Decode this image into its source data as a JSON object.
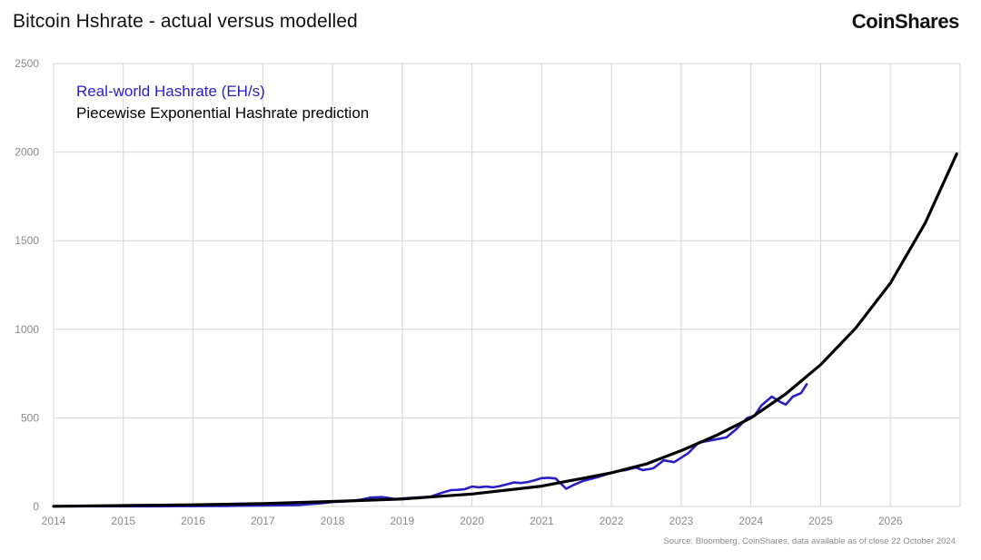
{
  "header": {
    "title": "Bitcoin Hshrate - actual versus modelled",
    "brand": "CoinShares"
  },
  "footer": {
    "source": "Source: Bloomberg, CoinShares, data available as of close 22 October 2024"
  },
  "colors": {
    "actual": "#2a1fc2",
    "model": "#000000",
    "grid": "#d4d4d4",
    "axis_text": "#8a8a8a"
  },
  "chart_data": {
    "type": "line",
    "title": "Bitcoin Hshrate - actual versus modelled",
    "xlabel": "",
    "ylabel": "",
    "xlim": [
      2014.0,
      2027.0
    ],
    "ylim": [
      0,
      2500
    ],
    "grid": true,
    "legend_position": "top-left",
    "x_ticks": [
      "2014",
      "2015",
      "2016",
      "2017",
      "2018",
      "2019",
      "2020",
      "2021",
      "2022",
      "2023",
      "2024",
      "2025",
      "2026"
    ],
    "y_ticks": [
      "0",
      "500",
      "1000",
      "1500",
      "2000",
      "2500"
    ],
    "series": [
      {
        "name": "Real-world Hashrate (EH/s)",
        "color": "#2a1fc2",
        "x": [
          2014.0,
          2014.5,
          2015.0,
          2015.5,
          2016.0,
          2016.5,
          2017.0,
          2017.5,
          2017.85,
          2018.0,
          2018.2,
          2018.4,
          2018.55,
          2018.7,
          2018.8,
          2018.9,
          2019.0,
          2019.2,
          2019.4,
          2019.55,
          2019.7,
          2019.8,
          2019.9,
          2020.0,
          2020.1,
          2020.2,
          2020.3,
          2020.4,
          2020.5,
          2020.6,
          2020.7,
          2020.8,
          2020.9,
          2021.0,
          2021.1,
          2021.2,
          2021.35,
          2021.45,
          2021.6,
          2021.8,
          2022.0,
          2022.1,
          2022.2,
          2022.35,
          2022.45,
          2022.6,
          2022.75,
          2022.9,
          2023.0,
          2023.1,
          2023.25,
          2023.45,
          2023.65,
          2023.8,
          2023.95,
          2024.05,
          2024.15,
          2024.3,
          2024.42,
          2024.5,
          2024.6,
          2024.72,
          2024.8
        ],
        "values": [
          1,
          1,
          1,
          1,
          2,
          3,
          5,
          8,
          18,
          25,
          28,
          38,
          50,
          53,
          48,
          42,
          45,
          50,
          55,
          75,
          92,
          94,
          98,
          112,
          108,
          112,
          108,
          115,
          125,
          135,
          132,
          138,
          148,
          160,
          162,
          158,
          100,
          120,
          145,
          165,
          190,
          200,
          205,
          220,
          205,
          215,
          260,
          250,
          275,
          300,
          360,
          375,
          390,
          440,
          500,
          510,
          570,
          620,
          590,
          575,
          620,
          640,
          690
        ]
      },
      {
        "name": "Piecewise Exponential Hashrate prediction",
        "color": "#000000",
        "model": "exponential",
        "x": [
          2014.0,
          2015.0,
          2016.0,
          2017.0,
          2018.0,
          2019.0,
          2020.0,
          2021.0,
          2022.0,
          2022.5,
          2023.0,
          2023.5,
          2024.0,
          2024.5,
          2025.0,
          2025.5,
          2026.0,
          2026.5,
          2026.95
        ],
        "values": [
          1,
          5,
          9,
          16,
          28,
          42,
          70,
          115,
          190,
          240,
          315,
          400,
          500,
          635,
          800,
          1005,
          1260,
          1600,
          1990
        ]
      }
    ]
  }
}
